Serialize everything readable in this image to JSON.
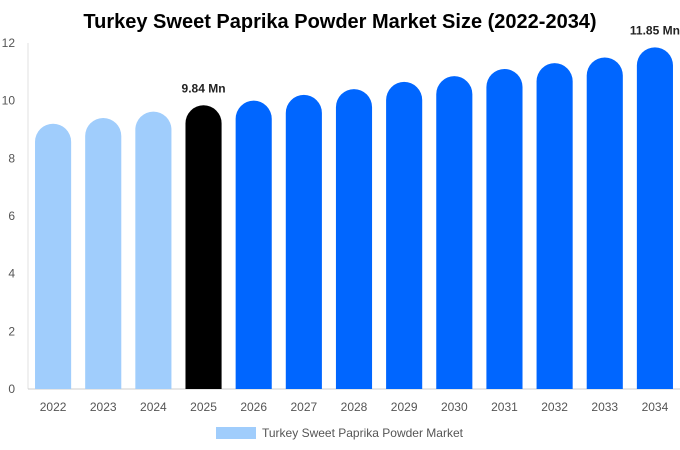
{
  "chart_data": {
    "type": "bar",
    "title": "Turkey Sweet Paprika Powder Market Size (2022-2034)",
    "xlabel": "",
    "ylabel": "",
    "categories": [
      "2022",
      "2023",
      "2024",
      "2025",
      "2026",
      "2027",
      "2028",
      "2029",
      "2030",
      "2031",
      "2032",
      "2033",
      "2034"
    ],
    "series": [
      {
        "name": "Turkey Sweet Paprika Powder Market",
        "values": [
          9.2,
          9.4,
          9.62,
          9.84,
          10.0,
          10.2,
          10.4,
          10.65,
          10.85,
          11.1,
          11.3,
          11.5,
          11.85
        ]
      }
    ],
    "data_labels": [
      {
        "category": "2025",
        "text": "9.84 Mn"
      },
      {
        "category": "2034",
        "text": "11.85 Mn"
      }
    ],
    "ylim": [
      0,
      12
    ],
    "yticks": [
      0,
      2,
      4,
      6,
      8,
      10,
      12
    ],
    "grid": false,
    "legend_position": "bottom-center",
    "colors": {
      "historical": "#a0cdfc",
      "current": "#000000",
      "forecast": "#0066ff"
    },
    "color_by_category": [
      "historical",
      "historical",
      "historical",
      "current",
      "forecast",
      "forecast",
      "forecast",
      "forecast",
      "forecast",
      "forecast",
      "forecast",
      "forecast",
      "forecast"
    ]
  }
}
